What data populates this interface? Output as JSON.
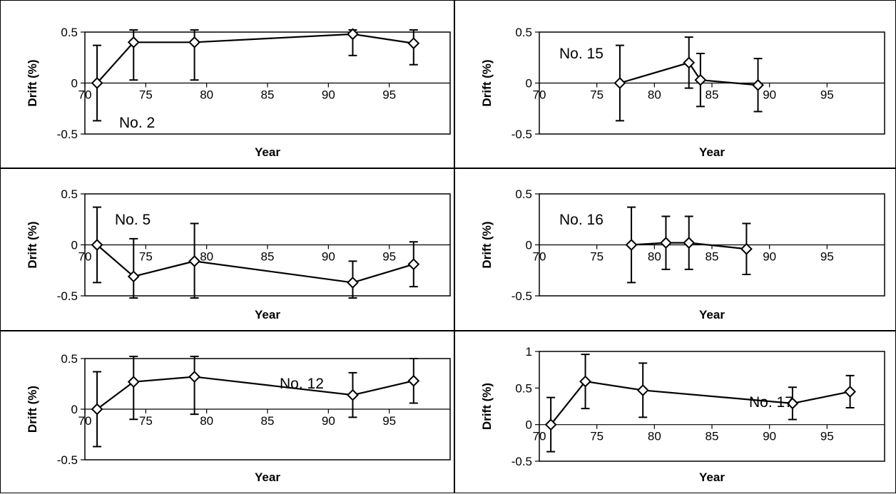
{
  "chart_data": [
    {
      "type": "line",
      "label": "No. 2",
      "xlabel": "Year",
      "ylabel": "Drift (%)",
      "xlim": [
        70,
        100
      ],
      "ylim": [
        -0.5,
        0.5
      ],
      "xticks": [
        "70",
        "75",
        "80",
        "85",
        "90",
        "95"
      ],
      "yticks": [
        "0.5",
        "0",
        "-0.5"
      ],
      "grid": false,
      "series": [
        {
          "x": [
            71,
            74,
            79,
            92,
            97
          ],
          "y": [
            0.0,
            0.4,
            0.4,
            0.48,
            0.39
          ],
          "err": [
            0.37,
            0.37,
            0.37,
            0.21,
            0.21
          ]
        }
      ]
    },
    {
      "type": "line",
      "label": "No. 15",
      "xlabel": "Year",
      "ylabel": "Drift (%)",
      "xlim": [
        70,
        100
      ],
      "ylim": [
        -0.5,
        0.5
      ],
      "xticks": [
        "70",
        "75",
        "80",
        "85",
        "90",
        "95"
      ],
      "yticks": [
        "0.5",
        "0",
        "-0.5"
      ],
      "grid": false,
      "series": [
        {
          "x": [
            77,
            83,
            84,
            89
          ],
          "y": [
            0.0,
            0.2,
            0.03,
            -0.02
          ],
          "err": [
            0.37,
            0.25,
            0.26,
            0.26
          ]
        }
      ]
    },
    {
      "type": "line",
      "label": "No. 5",
      "xlabel": "Year",
      "ylabel": "Drift (%)",
      "xlim": [
        70,
        100
      ],
      "ylim": [
        -0.5,
        0.5
      ],
      "xticks": [
        "70",
        "75",
        "80",
        "85",
        "90",
        "95"
      ],
      "yticks": [
        "0.5",
        "0",
        "-0.5"
      ],
      "grid": false,
      "series": [
        {
          "x": [
            71,
            74,
            79,
            92,
            97
          ],
          "y": [
            0.0,
            -0.31,
            -0.16,
            -0.37,
            -0.19
          ],
          "err": [
            0.37,
            0.37,
            0.37,
            0.21,
            0.22
          ]
        }
      ]
    },
    {
      "type": "line",
      "label": "No. 16",
      "xlabel": "Year",
      "ylabel": "Drift (%)",
      "xlim": [
        70,
        100
      ],
      "ylim": [
        -0.5,
        0.5
      ],
      "xticks": [
        "70",
        "75",
        "80",
        "85",
        "90",
        "95"
      ],
      "yticks": [
        "0.5",
        "0",
        "-0.5"
      ],
      "grid": false,
      "series": [
        {
          "x": [
            78,
            81,
            83,
            88
          ],
          "y": [
            0.0,
            0.02,
            0.02,
            -0.04
          ],
          "err": [
            0.37,
            0.26,
            0.26,
            0.25
          ]
        }
      ]
    },
    {
      "type": "line",
      "label": "No. 12",
      "xlabel": "Year",
      "ylabel": "Drift (%)",
      "xlim": [
        70,
        100
      ],
      "ylim": [
        -0.5,
        0.5
      ],
      "xticks": [
        "70",
        "75",
        "80",
        "85",
        "90",
        "95"
      ],
      "yticks": [
        "0.5",
        "0",
        "-0.5"
      ],
      "grid": false,
      "series": [
        {
          "x": [
            71,
            74,
            79,
            92,
            97
          ],
          "y": [
            0.0,
            0.27,
            0.32,
            0.14,
            0.28
          ],
          "err": [
            0.37,
            0.37,
            0.37,
            0.22,
            0.22
          ]
        }
      ]
    },
    {
      "type": "line",
      "label": "No. 17",
      "xlabel": "Year",
      "ylabel": "Drift (%)",
      "xlim": [
        70,
        100
      ],
      "ylim": [
        -0.5,
        1
      ],
      "xticks": [
        "70",
        "75",
        "80",
        "85",
        "90",
        "95"
      ],
      "yticks": [
        "1",
        "0.5",
        "0",
        "-0.5"
      ],
      "grid": false,
      "series": [
        {
          "x": [
            71,
            74,
            79,
            92,
            97
          ],
          "y": [
            0.0,
            0.59,
            0.47,
            0.29,
            0.45
          ],
          "err": [
            0.37,
            0.37,
            0.37,
            0.22,
            0.22
          ]
        }
      ]
    }
  ]
}
